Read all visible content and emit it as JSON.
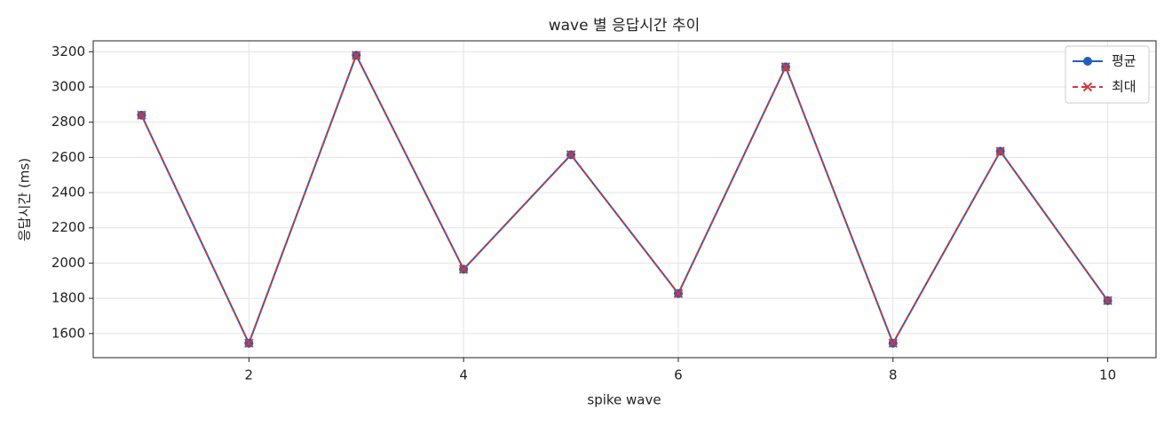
{
  "chart_data": {
    "type": "line",
    "title": "wave 별 응답시간 추이",
    "x_label": "spike wave",
    "y_label": "응답시간 (ms)",
    "x": [
      1,
      2,
      3,
      4,
      5,
      6,
      7,
      8,
      9,
      10
    ],
    "series": [
      {
        "name": "평균",
        "color": "#1f5fbf",
        "marker": "circle",
        "linestyle": "solid",
        "values": [
          2840,
          1545,
          3180,
          1965,
          2615,
          1827,
          3114,
          1545,
          2635,
          1787
        ]
      },
      {
        "name": "최대",
        "color": "#d03a3a",
        "marker": "x",
        "linestyle": "dashed",
        "values": [
          2840,
          1545,
          3180,
          1965,
          2615,
          1827,
          3114,
          1545,
          2635,
          1787
        ]
      }
    ],
    "xlim": [
      0.55,
      10.45
    ],
    "ylim": [
      1463,
      3262
    ],
    "xticks": [
      2,
      4,
      6,
      8,
      10
    ],
    "yticks": [
      1600,
      1800,
      2000,
      2200,
      2400,
      2600,
      2800,
      3000,
      3200
    ],
    "grid": true,
    "legend": "upper-right"
  }
}
